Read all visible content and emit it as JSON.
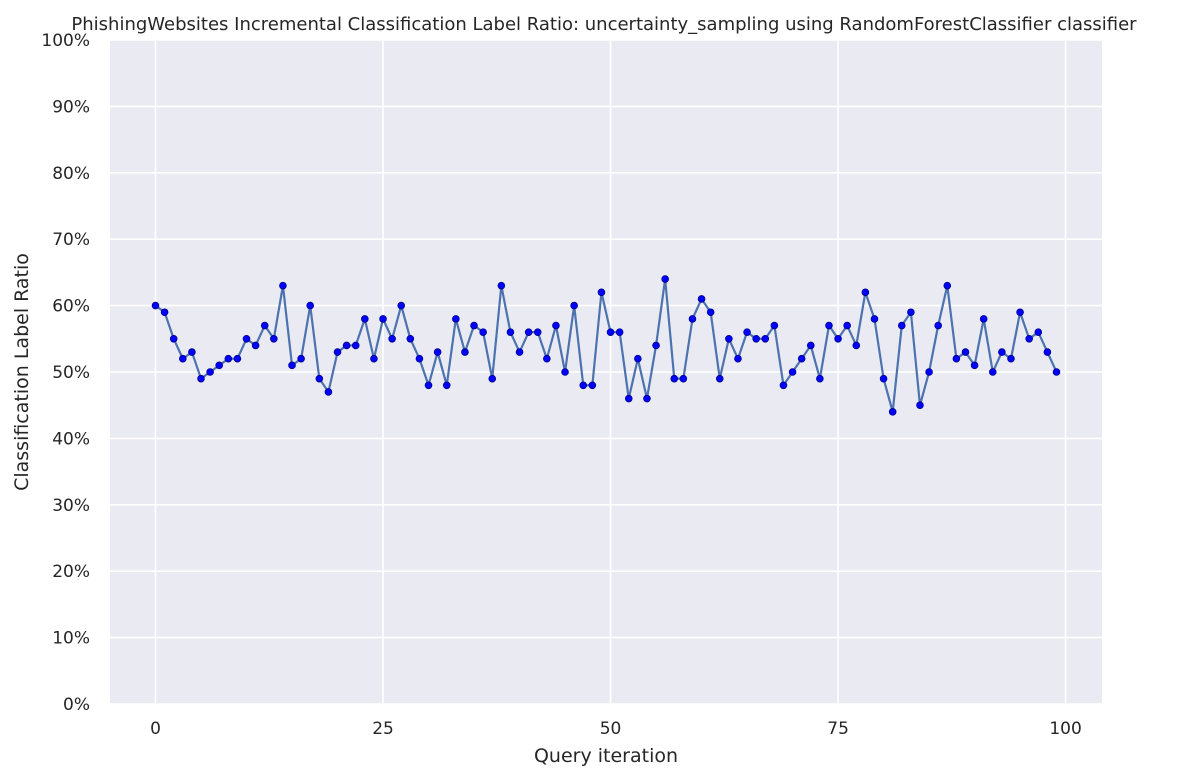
{
  "chart_data": {
    "type": "line",
    "title": "PhishingWebsites Incremental Classification Label Ratio: uncertainty_sampling using RandomForestClassifier classifier",
    "xlabel": "Query iteration",
    "ylabel": "Classification Label Ratio",
    "xlim": [
      -5,
      104
    ],
    "ylim": [
      0,
      1
    ],
    "x_ticks": [
      0,
      25,
      50,
      75,
      100
    ],
    "x_tick_labels": [
      "0",
      "25",
      "50",
      "75",
      "100"
    ],
    "y_ticks": [
      0,
      0.1,
      0.2,
      0.3,
      0.4,
      0.5,
      0.6,
      0.7,
      0.8,
      0.9,
      1.0
    ],
    "y_tick_labels": [
      "0%",
      "10%",
      "20%",
      "30%",
      "40%",
      "50%",
      "60%",
      "70%",
      "80%",
      "90%",
      "100%"
    ],
    "grid": true,
    "legend": "none",
    "colors": {
      "background": "#eaeaf2",
      "grid": "#ffffff",
      "line": "#4c72b0",
      "marker": "#0000ff",
      "marker_edge": "#00008b"
    },
    "series": [
      {
        "x": [
          0,
          1,
          2,
          3,
          4,
          5,
          6,
          7,
          8,
          9,
          10,
          11,
          12,
          13,
          14,
          15,
          16,
          17,
          18,
          19,
          20,
          21,
          22,
          23,
          24,
          25,
          26,
          27,
          28,
          29,
          30,
          31,
          32,
          33,
          34,
          35,
          36,
          37,
          38,
          39,
          40,
          41,
          42,
          43,
          44,
          45,
          46,
          47,
          48,
          49,
          50,
          51,
          52,
          53,
          54,
          55,
          56,
          57,
          58,
          59,
          60,
          61,
          62,
          63,
          64,
          65,
          66,
          67,
          68,
          69,
          70,
          71,
          72,
          73,
          74,
          75,
          76,
          77,
          78,
          79,
          80,
          81,
          82,
          83,
          84,
          85,
          86,
          87,
          88,
          89,
          90,
          91,
          92,
          93,
          94,
          95,
          96,
          97,
          98,
          99
        ],
        "values": [
          0.6,
          0.59,
          0.55,
          0.52,
          0.53,
          0.49,
          0.5,
          0.51,
          0.52,
          0.52,
          0.55,
          0.54,
          0.57,
          0.55,
          0.63,
          0.51,
          0.52,
          0.6,
          0.49,
          0.47,
          0.53,
          0.54,
          0.54,
          0.58,
          0.52,
          0.58,
          0.55,
          0.6,
          0.55,
          0.52,
          0.48,
          0.53,
          0.48,
          0.58,
          0.53,
          0.57,
          0.56,
          0.49,
          0.63,
          0.56,
          0.53,
          0.56,
          0.56,
          0.52,
          0.57,
          0.5,
          0.6,
          0.48,
          0.48,
          0.62,
          0.56,
          0.56,
          0.46,
          0.52,
          0.46,
          0.54,
          0.64,
          0.49,
          0.49,
          0.58,
          0.61,
          0.59,
          0.49,
          0.55,
          0.52,
          0.56,
          0.55,
          0.55,
          0.57,
          0.48,
          0.5,
          0.52,
          0.54,
          0.49,
          0.57,
          0.55,
          0.57,
          0.54,
          0.62,
          0.58,
          0.49,
          0.44,
          0.57,
          0.59,
          0.45,
          0.5,
          0.57,
          0.63,
          0.52,
          0.53,
          0.51,
          0.58,
          0.5,
          0.53,
          0.52,
          0.59,
          0.55,
          0.56,
          0.53,
          0.5
        ]
      }
    ]
  }
}
